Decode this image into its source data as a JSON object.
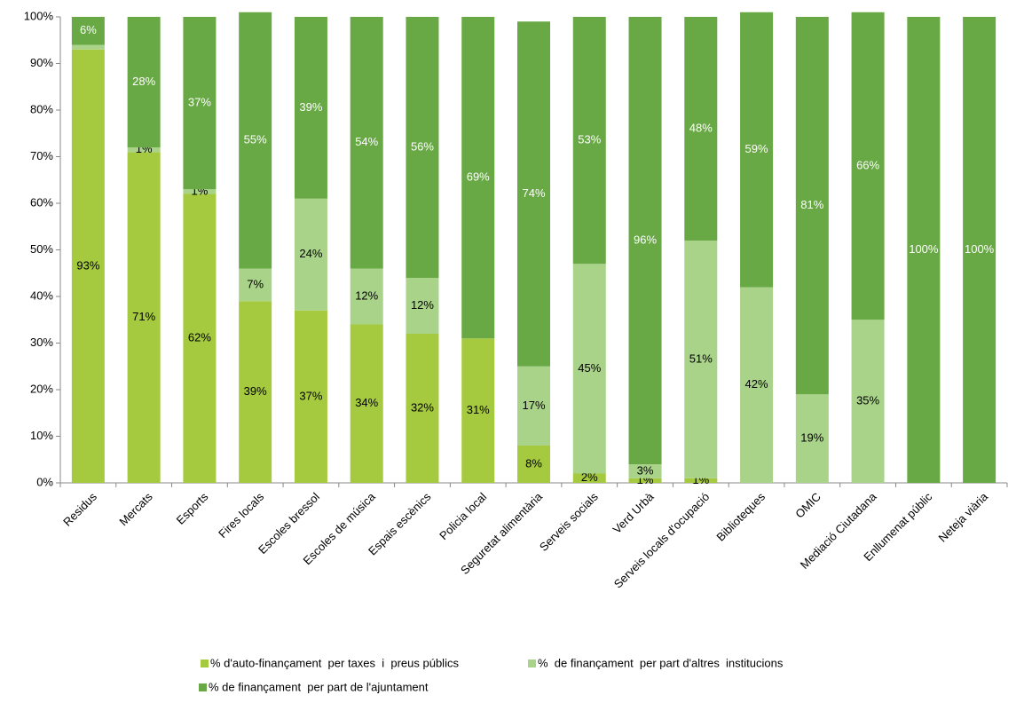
{
  "chart_data": {
    "type": "bar",
    "stacked": true,
    "categories": [
      "Residus",
      "Mercats",
      "Esports",
      "Fires locals",
      "Escoles bressol",
      "Escoles de música",
      "Espais escènics",
      "Policia local",
      "Seguretat alimentària",
      "Serveis socials",
      "Verd Urbà",
      "Serveis locals d'ocupació",
      "Biblioteques",
      "OMIC",
      "Mediació Ciutadana",
      "Enllumenat públic",
      "Neteja viària"
    ],
    "series": [
      {
        "name": "% d'auto-finançament  per taxes  i  preus públics",
        "color": "#a5c93f",
        "values": [
          93,
          71,
          62,
          39,
          37,
          34,
          32,
          31,
          8,
          2,
          1,
          1,
          0,
          0,
          0,
          0,
          0
        ],
        "value_labels": [
          "93%",
          "71%",
          "62%",
          "39%",
          "37%",
          "34%",
          "32%",
          "31%",
          "8%",
          "2%",
          "1%",
          "1%",
          null,
          null,
          null,
          null,
          null
        ]
      },
      {
        "name": "%  de finançament  per part d'altres  institucions",
        "color": "#aad38a",
        "values": [
          1,
          1,
          1,
          7,
          24,
          12,
          12,
          0,
          17,
          45,
          3,
          51,
          42,
          19,
          35,
          0,
          0
        ],
        "value_labels": [
          null,
          "1%",
          "1%",
          "7%",
          "24%",
          "12%",
          "12%",
          null,
          "17%",
          "45%",
          "3%",
          "51%",
          "42%",
          "19%",
          "35%",
          null,
          null
        ]
      },
      {
        "name": "% de finançament  per part de l'ajuntament",
        "color": "#68a945",
        "values": [
          6,
          28,
          37,
          55,
          39,
          54,
          56,
          69,
          74,
          53,
          96,
          48,
          59,
          81,
          66,
          100,
          100
        ],
        "value_labels": [
          "6%",
          "28%",
          "37%",
          "55%",
          "39%",
          "54%",
          "56%",
          "69%",
          "74%",
          "53%",
          "96%",
          "48%",
          "59%",
          "81%",
          "66%",
          "100%",
          "100%"
        ]
      }
    ],
    "ylim": [
      0,
      100
    ],
    "yticks": [
      {
        "value": 0,
        "label": "0%"
      },
      {
        "value": 10,
        "label": "10%"
      },
      {
        "value": 20,
        "label": "20%"
      },
      {
        "value": 30,
        "label": "30%"
      },
      {
        "value": 40,
        "label": "40%"
      },
      {
        "value": 50,
        "label": "50%"
      },
      {
        "value": 60,
        "label": "60%"
      },
      {
        "value": 70,
        "label": "70%"
      },
      {
        "value": 80,
        "label": "80%"
      },
      {
        "value": 90,
        "label": "90%"
      },
      {
        "value": 100,
        "label": "100%"
      }
    ]
  }
}
